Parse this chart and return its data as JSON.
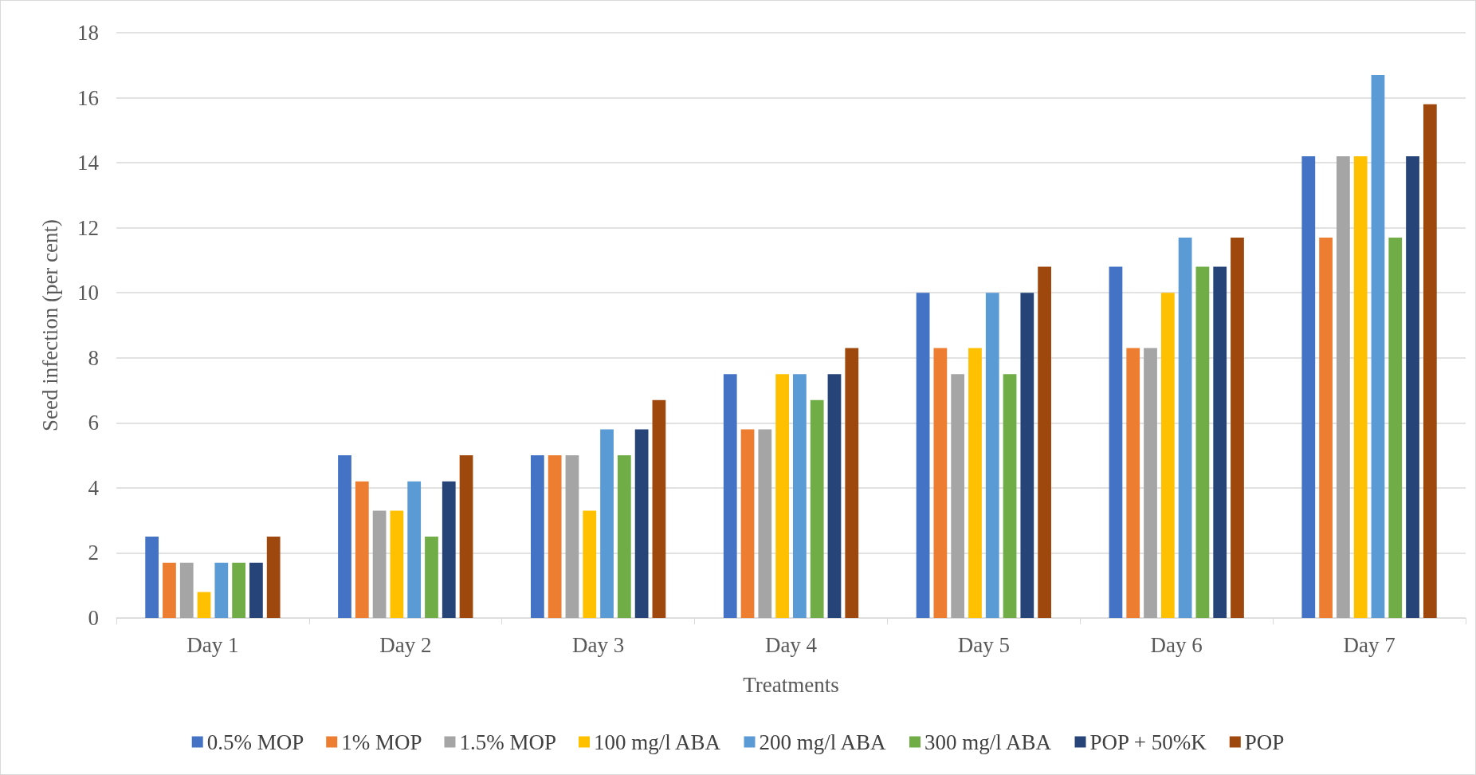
{
  "chart_data": {
    "type": "bar",
    "xlabel": "Treatments",
    "ylabel": "Seed infection (per cent)",
    "categories": [
      "Day 1",
      "Day 2",
      "Day 3",
      "Day 4",
      "Day 5",
      "Day 6",
      "Day 7"
    ],
    "series": [
      {
        "name": "0.5% MOP",
        "color": "#4472c4",
        "values": [
          2.5,
          5,
          5,
          7.5,
          10,
          10.8,
          14.2
        ]
      },
      {
        "name": "1% MOP",
        "color": "#ed7d31",
        "values": [
          1.7,
          4.2,
          5,
          5.8,
          8.3,
          8.3,
          11.7
        ]
      },
      {
        "name": "1.5% MOP",
        "color": "#a5a5a5",
        "values": [
          1.7,
          3.3,
          5,
          5.8,
          7.5,
          8.3,
          14.2
        ]
      },
      {
        "name": "100 mg/l ABA",
        "color": "#ffc000",
        "values": [
          0.8,
          3.3,
          3.3,
          7.5,
          8.3,
          10,
          14.2
        ]
      },
      {
        "name": "200 mg/l ABA",
        "color": "#5b9bd5",
        "values": [
          1.7,
          4.2,
          5.8,
          7.5,
          10,
          11.7,
          16.7
        ]
      },
      {
        "name": "300 mg/l ABA",
        "color": "#70ad47",
        "values": [
          1.7,
          2.5,
          5,
          6.7,
          7.5,
          10.8,
          11.7
        ]
      },
      {
        "name": "POP + 50%K",
        "color": "#264478",
        "values": [
          1.7,
          4.2,
          5.8,
          7.5,
          10,
          10.8,
          14.2
        ]
      },
      {
        "name": "POP",
        "color": "#9e480e",
        "values": [
          2.5,
          5,
          6.7,
          8.3,
          10.8,
          11.7,
          15.8
        ]
      }
    ],
    "ylim": [
      0,
      18
    ],
    "yticks": [
      0,
      2,
      4,
      6,
      8,
      10,
      12,
      14,
      16,
      18
    ],
    "grid": "y",
    "legend": "bottom"
  }
}
